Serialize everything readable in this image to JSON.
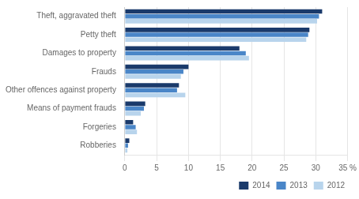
{
  "chart_data": {
    "type": "bar",
    "orientation": "horizontal",
    "categories": [
      "Theft, aggravated theft",
      "Petty theft",
      "Damages to property",
      "Frauds",
      "Other offences against property",
      "Means of payment frauds",
      "Forgeries",
      "Robberies"
    ],
    "series": [
      {
        "name": "2014",
        "color": "#1a3a6b",
        "values": [
          31.0,
          29.0,
          18.0,
          10.0,
          8.5,
          3.2,
          1.3,
          0.7
        ]
      },
      {
        "name": "2013",
        "color": "#4a86c8",
        "values": [
          30.5,
          28.8,
          19.0,
          9.2,
          8.2,
          3.0,
          1.7,
          0.5
        ]
      },
      {
        "name": "2012",
        "color": "#b8d4ec",
        "values": [
          30.2,
          28.5,
          19.5,
          8.8,
          9.5,
          2.5,
          1.9,
          0.4
        ]
      }
    ],
    "xlim": [
      0,
      35
    ],
    "xticks": [
      0,
      5,
      10,
      15,
      20,
      25,
      30,
      {
        "value": 35,
        "label": "35 %"
      }
    ],
    "grid": "x",
    "legend": "lower right"
  }
}
